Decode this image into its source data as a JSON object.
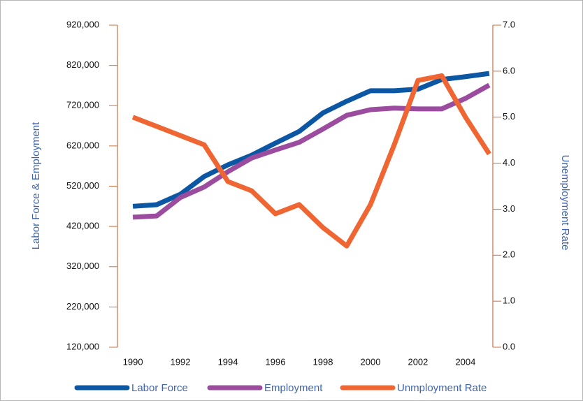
{
  "chart_data": {
    "type": "line",
    "x": [
      1990,
      1991,
      1992,
      1993,
      1994,
      1995,
      1996,
      1997,
      1998,
      1999,
      2000,
      2001,
      2002,
      2003,
      2004,
      2005
    ],
    "xlim": [
      1989.35,
      2005.15
    ],
    "xticks": [
      1990,
      1992,
      1994,
      1996,
      1998,
      2000,
      2002,
      2004
    ],
    "ylabel": "Labor Force & Employment",
    "y2label": "Unemployment Rate",
    "ylim": [
      120000,
      920000
    ],
    "yticks": [
      {
        "value": 120000,
        "label": "120,000"
      },
      {
        "value": 220000,
        "label": "220,000"
      },
      {
        "value": 320000,
        "label": "320,000"
      },
      {
        "value": 420000,
        "label": "420,000"
      },
      {
        "value": 520000,
        "label": "520,000"
      },
      {
        "value": 620000,
        "label": "620,000"
      },
      {
        "value": 720000,
        "label": "720,000"
      },
      {
        "value": 820000,
        "label": "820,000"
      },
      {
        "value": 920000,
        "label": "920,000"
      }
    ],
    "y2lim": [
      0,
      7
    ],
    "y2ticks": [
      {
        "value": 0,
        "label": "0.0"
      },
      {
        "value": 1,
        "label": "1.0"
      },
      {
        "value": 2,
        "label": "2.0"
      },
      {
        "value": 3,
        "label": "3.0"
      },
      {
        "value": 4,
        "label": "4.0"
      },
      {
        "value": 5,
        "label": "5.0"
      },
      {
        "value": 6,
        "label": "6.0"
      },
      {
        "value": 7,
        "label": "7.0"
      }
    ],
    "series": [
      {
        "name": "Labor Force",
        "color": "#0b57a4",
        "values": [
          470000,
          474000,
          500000,
          544000,
          573000,
          597000,
          627000,
          656000,
          702000,
          731000,
          757000,
          757000,
          761000,
          785000,
          792000,
          800000
        ]
      },
      {
        "name": "Employment",
        "color": "#9b4c9f",
        "values": [
          443000,
          446000,
          492000,
          518000,
          556000,
          590000,
          610000,
          629000,
          662000,
          696000,
          710000,
          714000,
          712000,
          712000,
          738000,
          771000
        ]
      },
      {
        "name": "Unmployment Rate",
        "color": "#ef6632",
        "axis": "y2",
        "values": [
          5.0,
          4.8,
          4.6,
          4.4,
          3.6,
          3.4,
          2.9,
          3.1,
          2.6,
          2.2,
          3.1,
          4.4,
          5.8,
          5.9,
          5.0,
          4.2
        ]
      }
    ]
  }
}
